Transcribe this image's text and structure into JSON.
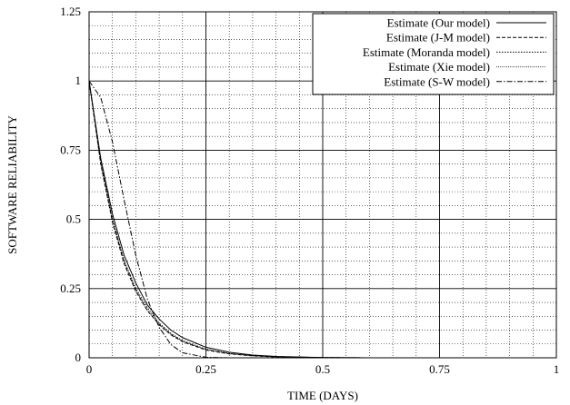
{
  "chart_data": {
    "type": "line",
    "title": "",
    "xlabel": "TIME (DAYS)",
    "ylabel": "SOFTWARE RELIABILITY",
    "xlim": [
      0,
      1
    ],
    "ylim": [
      0,
      1.25
    ],
    "grid": {
      "major": true,
      "minor": true
    },
    "legend_position": "top-right",
    "x_ticks": [
      0,
      0.25,
      0.5,
      0.75,
      1
    ],
    "x_tick_labels": [
      "0",
      "0.25",
      "0.5",
      "0.75",
      "1"
    ],
    "y_ticks": [
      0,
      0.25,
      0.5,
      0.75,
      1,
      1.25
    ],
    "y_tick_labels": [
      "0",
      "0.25",
      "0.5",
      "0.75",
      "1",
      "1.25"
    ],
    "series": [
      {
        "name": "Estimate (Our model)",
        "dash": "solid",
        "x": [
          0,
          0.025,
          0.05,
          0.075,
          0.1,
          0.125,
          0.15,
          0.175,
          0.2,
          0.25,
          0.3,
          0.35,
          0.4,
          0.5,
          0.6,
          1.0
        ],
        "y": [
          1.0,
          0.72,
          0.52,
          0.37,
          0.27,
          0.19,
          0.14,
          0.1,
          0.073,
          0.038,
          0.02,
          0.01,
          0.005,
          0.001,
          0.0,
          0.0
        ]
      },
      {
        "name": "Estimate (J-M model)",
        "dash": "dashed",
        "x": [
          0,
          0.025,
          0.05,
          0.075,
          0.1,
          0.125,
          0.15,
          0.175,
          0.2,
          0.25,
          0.3,
          0.35,
          0.4,
          0.5,
          0.6,
          1.0
        ],
        "y": [
          1.0,
          0.7,
          0.49,
          0.34,
          0.24,
          0.17,
          0.12,
          0.083,
          0.058,
          0.028,
          0.014,
          0.007,
          0.003,
          0.001,
          0.0,
          0.0
        ]
      },
      {
        "name": "Estimate (Moranda model)",
        "dash": "dotted",
        "x": [
          0,
          0.025,
          0.05,
          0.075,
          0.1,
          0.125,
          0.15,
          0.175,
          0.2,
          0.25,
          0.3,
          0.35,
          0.4,
          0.5,
          0.6,
          1.0
        ],
        "y": [
          1.0,
          0.71,
          0.5,
          0.35,
          0.25,
          0.18,
          0.125,
          0.088,
          0.062,
          0.031,
          0.016,
          0.008,
          0.004,
          0.001,
          0.0,
          0.0
        ]
      },
      {
        "name": "Estimate (Xie model)",
        "dash": "fine-dotted",
        "x": [
          0,
          0.025,
          0.05,
          0.075,
          0.1,
          0.125,
          0.15,
          0.175,
          0.2,
          0.25,
          0.3,
          0.35,
          0.4,
          0.5,
          0.6,
          1.0
        ],
        "y": [
          1.0,
          0.7,
          0.5,
          0.35,
          0.245,
          0.17,
          0.12,
          0.085,
          0.06,
          0.03,
          0.015,
          0.0075,
          0.0037,
          0.001,
          0.0,
          0.0
        ]
      },
      {
        "name": "Estimate (S-W model)",
        "dash": "dash-dot",
        "x": [
          0,
          0.025,
          0.05,
          0.075,
          0.1,
          0.125,
          0.15,
          0.175,
          0.2,
          0.25,
          0.3,
          0.5,
          1.0
        ],
        "y": [
          1.0,
          0.94,
          0.78,
          0.57,
          0.37,
          0.21,
          0.11,
          0.048,
          0.018,
          0.002,
          0.0,
          0.0,
          0.0
        ]
      }
    ]
  }
}
